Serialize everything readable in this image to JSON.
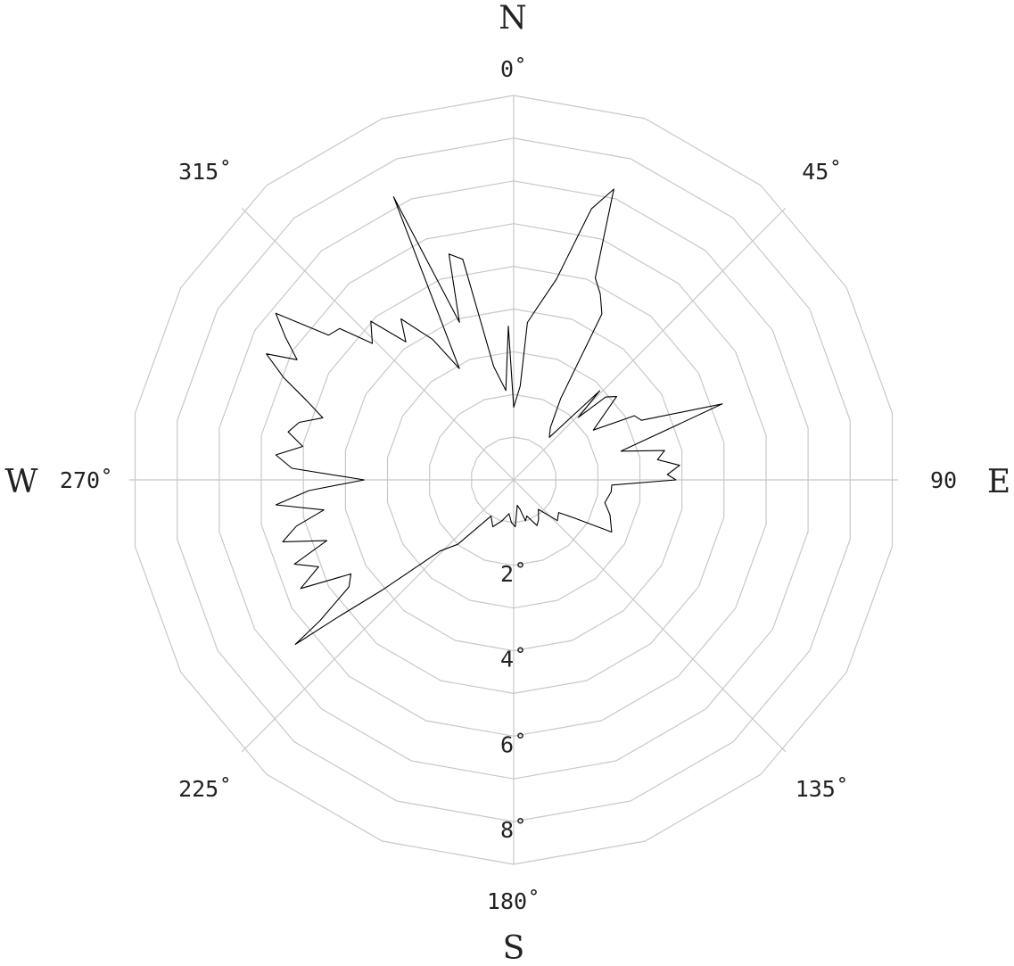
{
  "chart_data": {
    "type": "polar-line",
    "title": "",
    "cardinals": {
      "north": "N",
      "east": "E",
      "south": "S",
      "west": "W"
    },
    "angle_labels": [
      {
        "angle": 0,
        "text": "0˚"
      },
      {
        "angle": 45,
        "text": "45˚"
      },
      {
        "angle": 90,
        "text": "90"
      },
      {
        "angle": 135,
        "text": "135˚"
      },
      {
        "angle": 180,
        "text": "180˚"
      },
      {
        "angle": 225,
        "text": "225˚"
      },
      {
        "angle": 270,
        "text": "270˚"
      },
      {
        "angle": 315,
        "text": "315˚"
      }
    ],
    "radial_labels": [
      {
        "value": 2,
        "text": "2˚"
      },
      {
        "value": 4,
        "text": "4˚"
      },
      {
        "value": 6,
        "text": "6˚"
      },
      {
        "value": 8,
        "text": "8˚"
      }
    ],
    "r_max": 9,
    "r_grid_step": 1,
    "grid_sides": 18,
    "spokes": [
      0,
      45,
      90,
      135,
      180,
      225,
      270,
      315
    ],
    "grid": true,
    "colors": {
      "grid": "#c8c8c8",
      "line": "#000000",
      "text": "#222222"
    },
    "series": [
      {
        "points": [
          [
            0,
            1.7
          ],
          [
            4,
            2.2
          ],
          [
            5,
            3.7
          ],
          [
            8,
            4.1
          ],
          [
            12,
            4.8
          ],
          [
            16,
            6.6
          ],
          [
            19,
            7.2
          ],
          [
            22,
            5.1
          ],
          [
            25,
            4.8
          ],
          [
            28,
            4.4
          ],
          [
            30,
            2.2
          ],
          [
            35,
            1.5
          ],
          [
            40,
            1.3
          ],
          [
            44,
            2.9
          ],
          [
            46,
            2.1
          ],
          [
            48,
            2.9
          ],
          [
            51,
            3.1
          ],
          [
            58,
            2.2
          ],
          [
            62,
            3.2
          ],
          [
            65,
            3.3
          ],
          [
            70,
            5.2
          ],
          [
            75,
            2.6
          ],
          [
            79,
            3.6
          ],
          [
            82,
            3.4
          ],
          [
            85,
            3.9
          ],
          [
            88,
            3.6
          ],
          [
            90,
            3.8
          ],
          [
            93,
            2.3
          ],
          [
            97,
            2.3
          ],
          [
            104,
            2.2
          ],
          [
            110,
            2.4
          ],
          [
            118,
            2.6
          ],
          [
            122,
            1.7
          ],
          [
            126,
            1.3
          ],
          [
            133,
            1.4
          ],
          [
            140,
            0.9
          ],
          [
            148,
            1.1
          ],
          [
            153,
            1.2
          ],
          [
            160,
            0.9
          ],
          [
            164,
            1.0
          ],
          [
            168,
            0.7
          ],
          [
            172,
            0.6
          ],
          [
            178,
            1.1
          ],
          [
            183,
            1.0
          ],
          [
            188,
            0.8
          ],
          [
            196,
            1.0
          ],
          [
            204,
            1.2
          ],
          [
            212,
            1.0
          ],
          [
            221,
            2.0
          ],
          [
            226,
            2.4
          ],
          [
            230,
            4.0
          ],
          [
            232,
            5.2
          ],
          [
            233,
            6.4
          ],
          [
            234,
            5.6
          ],
          [
            237,
            4.6
          ],
          [
            240,
            4.4
          ],
          [
            243,
            5.6
          ],
          [
            246,
            5.0
          ],
          [
            249,
            5.5
          ],
          [
            252,
            4.6
          ],
          [
            255,
            5.6
          ],
          [
            258,
            5.2
          ],
          [
            261,
            4.5
          ],
          [
            264,
            5.6
          ],
          [
            267,
            4.8
          ],
          [
            270,
            3.5
          ],
          [
            273,
            5.2
          ],
          [
            276,
            5.6
          ],
          [
            279,
            5.0
          ],
          [
            282,
            5.4
          ],
          [
            285,
            5.2
          ],
          [
            288,
            4.7
          ],
          [
            291,
            5.2
          ],
          [
            294,
            5.9
          ],
          [
            297,
            6.5
          ],
          [
            299,
            5.8
          ],
          [
            302,
            6.3
          ],
          [
            305,
            6.8
          ],
          [
            308,
            5.5
          ],
          [
            311,
            5.4
          ],
          [
            314,
            4.6
          ],
          [
            318,
            5.0
          ],
          [
            322,
            4.1
          ],
          [
            325,
            4.6
          ],
          [
            330,
            3.8
          ],
          [
            334,
            2.9
          ],
          [
            337,
            7.2
          ],
          [
            341,
            3.9
          ],
          [
            344,
            5.5
          ],
          [
            347,
            5.3
          ],
          [
            350,
            2.7
          ],
          [
            355,
            2.1
          ],
          [
            358,
            3.6
          ],
          [
            360,
            1.7
          ]
        ]
      }
    ]
  }
}
